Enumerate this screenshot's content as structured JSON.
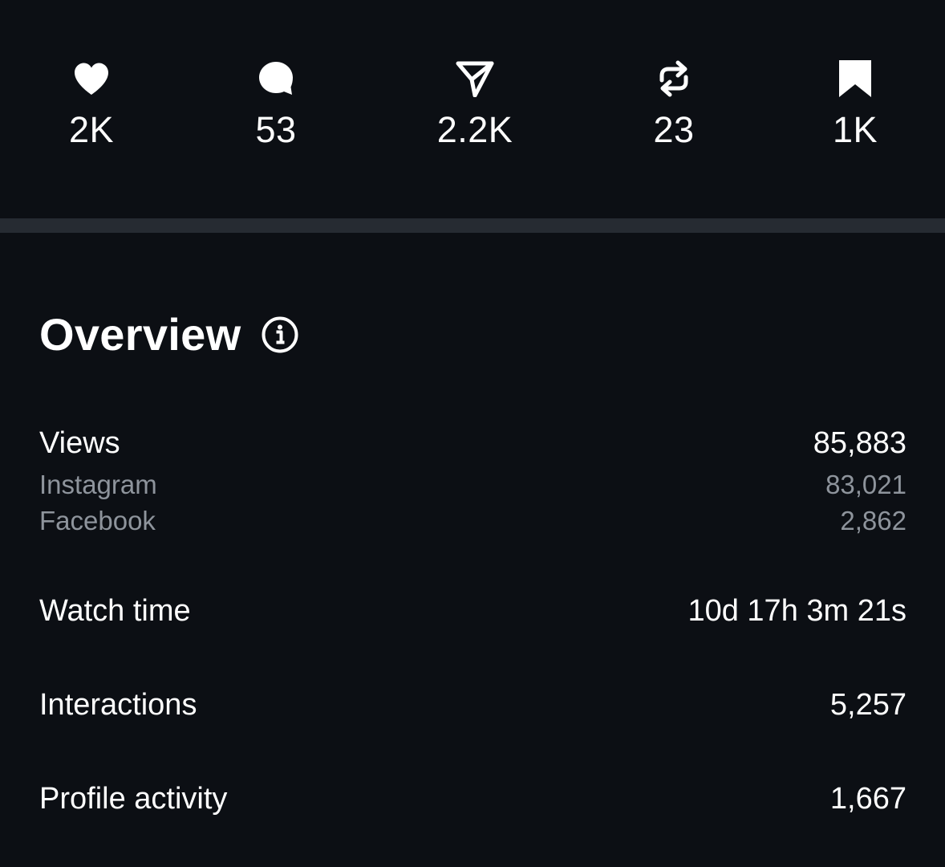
{
  "engagement": [
    {
      "icon": "heart-icon",
      "count": "2K"
    },
    {
      "icon": "comment-icon",
      "count": "53"
    },
    {
      "icon": "share-icon",
      "count": "2.2K"
    },
    {
      "icon": "repost-icon",
      "count": "23"
    },
    {
      "icon": "bookmark-icon",
      "count": "1K"
    }
  ],
  "overview": {
    "title": "Overview",
    "info_icon": "info-icon",
    "views": {
      "label": "Views",
      "value": "85,883"
    },
    "instagram": {
      "label": "Instagram",
      "value": "83,021"
    },
    "facebook": {
      "label": "Facebook",
      "value": "2,862"
    },
    "watch_time": {
      "label": "Watch time",
      "value": "10d 17h 3m 21s"
    },
    "interactions": {
      "label": "Interactions",
      "value": "5,257"
    },
    "profile_activity": {
      "label": "Profile activity",
      "value": "1,667"
    }
  },
  "colors": {
    "background": "#0c0f14",
    "divider": "#262b32",
    "primary_text": "#ffffff",
    "secondary_text": "#8e949c"
  }
}
